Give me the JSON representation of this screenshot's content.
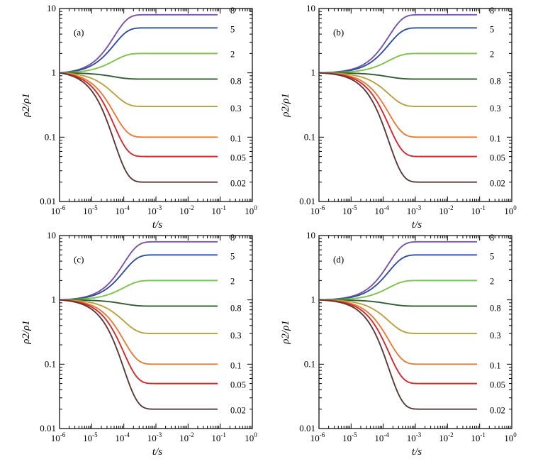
{
  "chart_data": [
    {
      "type": "line",
      "panel": "(a)",
      "xlabel": "t/s",
      "ylabel": "ρ2/ρ1",
      "xscale": "log",
      "yscale": "log",
      "xlim": [
        1e-06,
        1
      ],
      "ylim": [
        0.01,
        10
      ],
      "x_ticks": [
        {
          "base": "10",
          "exp": "-6"
        },
        {
          "base": "10",
          "exp": "-5"
        },
        {
          "base": "10",
          "exp": "-4"
        },
        {
          "base": "10",
          "exp": "-3"
        },
        {
          "base": "10",
          "exp": "-2"
        },
        {
          "base": "10",
          "exp": "-1"
        },
        {
          "base": "10",
          "exp": "0"
        }
      ],
      "y_ticks": [
        "0.01",
        "0.1",
        "1",
        "10"
      ],
      "series": [
        {
          "name": "8",
          "color": "#7c52a8",
          "final": 8.0,
          "tau": 5e-05
        },
        {
          "name": "5",
          "color": "#2d4fa3",
          "final": 5.0,
          "tau": 5e-05
        },
        {
          "name": "2",
          "color": "#7cc448",
          "final": 2.0,
          "tau": 5e-05
        },
        {
          "name": "0.8",
          "color": "#2c6030",
          "final": 0.8,
          "tau": 5e-05
        },
        {
          "name": "0.3",
          "color": "#b9a23e",
          "final": 0.3,
          "tau": 5e-05
        },
        {
          "name": "0.1",
          "color": "#ec7a30",
          "final": 0.1,
          "tau": 5e-05
        },
        {
          "name": "0.05",
          "color": "#d8272a",
          "final": 0.05,
          "tau": 5e-05
        },
        {
          "name": "0.02",
          "color": "#5a3a38",
          "final": 0.02,
          "tau": 5e-05
        }
      ]
    },
    {
      "type": "line",
      "panel": "(b)",
      "xlabel": "t/s",
      "ylabel": "ρ2/ρ1",
      "xscale": "log",
      "yscale": "log",
      "xlim": [
        1e-06,
        1
      ],
      "ylim": [
        0.01,
        10
      ],
      "x_ticks": [
        {
          "base": "10",
          "exp": "-6"
        },
        {
          "base": "10",
          "exp": "-5"
        },
        {
          "base": "10",
          "exp": "-4"
        },
        {
          "base": "10",
          "exp": "-3"
        },
        {
          "base": "10",
          "exp": "-2"
        },
        {
          "base": "10",
          "exp": "-1"
        },
        {
          "base": "10",
          "exp": "0"
        }
      ],
      "y_ticks": [
        "0.01",
        "0.1",
        "1",
        "10"
      ],
      "series": [
        {
          "name": "8",
          "color": "#7c52a8",
          "final": 8.0,
          "tau": 0.00015
        },
        {
          "name": "5",
          "color": "#2d4fa3",
          "final": 5.0,
          "tau": 0.00015
        },
        {
          "name": "2",
          "color": "#7cc448",
          "final": 2.0,
          "tau": 0.00015
        },
        {
          "name": "0.8",
          "color": "#2c6030",
          "final": 0.8,
          "tau": 0.00015
        },
        {
          "name": "0.3",
          "color": "#b9a23e",
          "final": 0.3,
          "tau": 0.00015
        },
        {
          "name": "0.1",
          "color": "#ec7a30",
          "final": 0.1,
          "tau": 0.00015
        },
        {
          "name": "0.05",
          "color": "#d8272a",
          "final": 0.05,
          "tau": 0.00015
        },
        {
          "name": "0.02",
          "color": "#5a3a38",
          "final": 0.02,
          "tau": 0.00015
        }
      ]
    },
    {
      "type": "line",
      "panel": "(c)",
      "xlabel": "t/s",
      "ylabel": "ρ2/ρ1",
      "xscale": "log",
      "yscale": "log",
      "xlim": [
        1e-06,
        1
      ],
      "ylim": [
        0.01,
        10
      ],
      "x_ticks": [
        {
          "base": "10",
          "exp": "-6"
        },
        {
          "base": "10",
          "exp": "-5"
        },
        {
          "base": "10",
          "exp": "-4"
        },
        {
          "base": "10",
          "exp": "-3"
        },
        {
          "base": "10",
          "exp": "-2"
        },
        {
          "base": "10",
          "exp": "-1"
        },
        {
          "base": "10",
          "exp": "0"
        }
      ],
      "y_ticks": [
        "0.01",
        "0.1",
        "1",
        "10"
      ],
      "series": [
        {
          "name": "8",
          "color": "#7c52a8",
          "final": 8.0,
          "tau": 0.0001
        },
        {
          "name": "5",
          "color": "#2d4fa3",
          "final": 5.0,
          "tau": 0.0001
        },
        {
          "name": "2",
          "color": "#7cc448",
          "final": 2.0,
          "tau": 0.0001
        },
        {
          "name": "0.8",
          "color": "#2c6030",
          "final": 0.8,
          "tau": 0.0001
        },
        {
          "name": "0.3",
          "color": "#b9a23e",
          "final": 0.3,
          "tau": 0.0001
        },
        {
          "name": "0.1",
          "color": "#ec7a30",
          "final": 0.1,
          "tau": 0.0001
        },
        {
          "name": "0.05",
          "color": "#d8272a",
          "final": 0.05,
          "tau": 0.0001
        },
        {
          "name": "0.02",
          "color": "#5a3a38",
          "final": 0.02,
          "tau": 0.0001
        }
      ]
    },
    {
      "type": "line",
      "panel": "(d)",
      "xlabel": "t/s",
      "ylabel": "ρ2/ρ1",
      "xscale": "log",
      "yscale": "log",
      "xlim": [
        1e-06,
        1
      ],
      "ylim": [
        0.01,
        10
      ],
      "x_ticks": [
        {
          "base": "10",
          "exp": "-6"
        },
        {
          "base": "10",
          "exp": "-5"
        },
        {
          "base": "10",
          "exp": "-4"
        },
        {
          "base": "10",
          "exp": "-3"
        },
        {
          "base": "10",
          "exp": "-2"
        },
        {
          "base": "10",
          "exp": "-1"
        },
        {
          "base": "10",
          "exp": "0"
        }
      ],
      "y_ticks": [
        "0.01",
        "0.1",
        "1",
        "10"
      ],
      "series": [
        {
          "name": "8",
          "color": "#7c52a8",
          "final": 8.0,
          "tau": 0.00015
        },
        {
          "name": "5",
          "color": "#2d4fa3",
          "final": 5.0,
          "tau": 0.00015
        },
        {
          "name": "2",
          "color": "#7cc448",
          "final": 2.0,
          "tau": 0.00015
        },
        {
          "name": "0.8",
          "color": "#2c6030",
          "final": 0.8,
          "tau": 0.00015
        },
        {
          "name": "0.3",
          "color": "#b9a23e",
          "final": 0.3,
          "tau": 0.00015
        },
        {
          "name": "0.1",
          "color": "#ec7a30",
          "final": 0.1,
          "tau": 0.00015
        },
        {
          "name": "0.05",
          "color": "#d8272a",
          "final": 0.05,
          "tau": 0.00015
        },
        {
          "name": "0.02",
          "color": "#5a3a38",
          "final": 0.02,
          "tau": 0.00015
        }
      ]
    }
  ]
}
